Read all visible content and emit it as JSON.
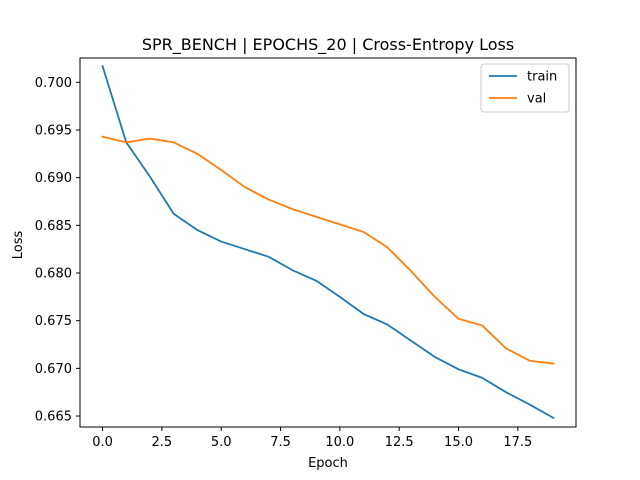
{
  "chart_data": {
    "type": "line",
    "title": "SPR_BENCH | EPOCHS_20 | Cross-Entropy Loss",
    "xlabel": "Epoch",
    "ylabel": "Loss",
    "xlim": [
      -0.95,
      19.95
    ],
    "ylim": [
      0.66385,
      0.70255
    ],
    "xticks": [
      0,
      2.5,
      5,
      7.5,
      10,
      12.5,
      15,
      17.5
    ],
    "xtick_labels": [
      "0.0",
      "2.5",
      "5.0",
      "7.5",
      "10.0",
      "12.5",
      "15.0",
      "17.5"
    ],
    "yticks": [
      0.665,
      0.67,
      0.675,
      0.68,
      0.685,
      0.69,
      0.695,
      0.7
    ],
    "ytick_labels": [
      "0.665",
      "0.670",
      "0.675",
      "0.680",
      "0.685",
      "0.690",
      "0.695",
      "0.700"
    ],
    "grid": false,
    "legend_position": "top-right",
    "x": [
      0,
      1,
      2,
      3,
      4,
      5,
      6,
      7,
      8,
      9,
      10,
      11,
      12,
      13,
      14,
      15,
      16,
      17,
      18,
      19
    ],
    "series": [
      {
        "name": "train",
        "color": "#1f77b4",
        "values": [
          0.7017,
          0.6937,
          0.6901,
          0.6862,
          0.6845,
          0.6833,
          0.6825,
          0.6817,
          0.6803,
          0.6792,
          0.6775,
          0.6757,
          0.6746,
          0.6729,
          0.6712,
          0.6699,
          0.669,
          0.6675,
          0.6662,
          0.6648
        ]
      },
      {
        "name": "val",
        "color": "#ff7f0e",
        "values": [
          0.6943,
          0.6937,
          0.6941,
          0.6937,
          0.6925,
          0.6908,
          0.689,
          0.6877,
          0.6867,
          0.6859,
          0.6851,
          0.6843,
          0.6827,
          0.6802,
          0.6775,
          0.6752,
          0.6745,
          0.6721,
          0.6708,
          0.6705
        ]
      }
    ]
  }
}
